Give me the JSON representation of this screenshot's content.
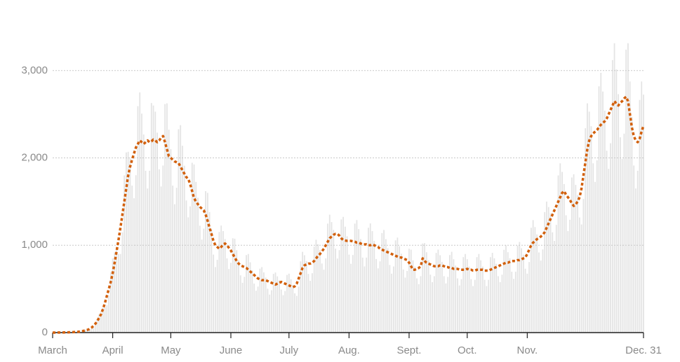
{
  "chart_data": {
    "type": "bar-line",
    "categories": [
      "March",
      null,
      null,
      null,
      null,
      null,
      null,
      null,
      null,
      null,
      null,
      null,
      null,
      null,
      null,
      null,
      null,
      null,
      null,
      null,
      null,
      null,
      null,
      null,
      null,
      null,
      null,
      null,
      null,
      null,
      null,
      "April",
      null,
      null,
      null,
      null,
      null,
      null,
      null,
      null,
      null,
      null,
      null,
      null,
      null,
      null,
      null,
      null,
      null,
      null,
      null,
      null,
      null,
      null,
      null,
      null,
      null,
      null,
      null,
      null,
      null,
      "May",
      null,
      null,
      null,
      null,
      null,
      null,
      null,
      null,
      null,
      null,
      null,
      null,
      null,
      null,
      null,
      null,
      null,
      null,
      null,
      null,
      null,
      null,
      null,
      null,
      null,
      null,
      null,
      null,
      null,
      null,
      "June",
      null,
      null,
      null,
      null,
      null,
      null,
      null,
      null,
      null,
      null,
      null,
      null,
      null,
      null,
      null,
      null,
      null,
      null,
      null,
      null,
      null,
      null,
      null,
      null,
      null,
      null,
      null,
      null,
      null,
      "July",
      null,
      null,
      null,
      null,
      null,
      null,
      null,
      null,
      null,
      null,
      null,
      null,
      null,
      null,
      null,
      null,
      null,
      null,
      null,
      null,
      null,
      null,
      null,
      null,
      null,
      null,
      null,
      null,
      null,
      null,
      "Aug.",
      null,
      null,
      null,
      null,
      null,
      null,
      null,
      null,
      null,
      null,
      null,
      null,
      null,
      null,
      null,
      null,
      null,
      null,
      null,
      null,
      null,
      null,
      null,
      null,
      null,
      null,
      null,
      null,
      null,
      null,
      "Sept.",
      null,
      null,
      null,
      null,
      null,
      null,
      null,
      null,
      null,
      null,
      null,
      null,
      null,
      null,
      null,
      null,
      null,
      null,
      null,
      null,
      null,
      null,
      null,
      null,
      null,
      null,
      null,
      null,
      null,
      "Oct.",
      null,
      null,
      null,
      null,
      null,
      null,
      null,
      null,
      null,
      null,
      null,
      null,
      null,
      null,
      null,
      null,
      null,
      null,
      null,
      null,
      null,
      null,
      null,
      null,
      null,
      null,
      null,
      null,
      null,
      null,
      "Nov.",
      null,
      null,
      null,
      null,
      null,
      null,
      null,
      null,
      null,
      null,
      null,
      null,
      null,
      null,
      null,
      null,
      null,
      null,
      null,
      null,
      null,
      null,
      null,
      null,
      null,
      null,
      null,
      null,
      null,
      null,
      null,
      null,
      null,
      null,
      null,
      null,
      null,
      null,
      null,
      null,
      null,
      null,
      null,
      null,
      null,
      null,
      null,
      null,
      null,
      null,
      null,
      null,
      null,
      null,
      null,
      null,
      null,
      null,
      null,
      "Dec. 31"
    ],
    "series": [
      {
        "type": "bar",
        "color": "#e4e4e4",
        "values": [
          0,
          0,
          0,
          1,
          1,
          1,
          2,
          2,
          3,
          5,
          6,
          7,
          7,
          8,
          9,
          14,
          24,
          33,
          37,
          42,
          47,
          56,
          85,
          156,
          212,
          242,
          284,
          289,
          315,
          425,
          696,
          850,
          920,
          977,
          901,
          900,
          1148,
          1800,
          2063,
          2070,
          1995,
          1683,
          1538,
          1802,
          2592,
          2750,
          2507,
          2268,
          1853,
          1650,
          1853,
          2628,
          2600,
          2530,
          2289,
          1870,
          1673,
          1913,
          2616,
          2625,
          2323,
          2100,
          1683,
          1470,
          1658,
          2328,
          2375,
          2139,
          1911,
          1513,
          1320,
          1445,
          1944,
          1925,
          1725,
          1544,
          1224,
          1065,
          1190,
          1620,
          1600,
          1380,
          1187,
          893,
          750,
          833,
          1152,
          1225,
          1162,
          1071,
          850,
          728,
          799,
          1080,
          1075,
          943,
          830,
          655,
          570,
          638,
          888,
          900,
          805,
          714,
          561,
          480,
          527,
          732,
          750,
          690,
          630,
          502,
          435,
          485,
          672,
          688,
          644,
          599,
          493,
          428,
          476,
          660,
          675,
          610,
          546,
          450,
          420,
          527,
          816,
          925,
          886,
          819,
          672,
          593,
          680,
          984,
          1063,
          1012,
          945,
          791,
          720,
          850,
          1248,
          1350,
          1265,
          1176,
          961,
          848,
          944,
          1296,
          1325,
          1213,
          1103,
          893,
          788,
          888,
          1248,
          1288,
          1185,
          1071,
          859,
          758,
          859,
          1200,
          1250,
          1162,
          1050,
          842,
          735,
          816,
          1140,
          1175,
          1070,
          966,
          774,
          675,
          757,
          1056,
          1088,
          989,
          903,
          723,
          630,
          706,
          960,
          950,
          828,
          756,
          621,
          555,
          646,
          1020,
          1025,
          920,
          830,
          663,
          578,
          646,
          912,
          950,
          886,
          809,
          646,
          563,
          638,
          888,
          925,
          840,
          767,
          621,
          540,
          612,
          864,
          900,
          840,
          756,
          612,
          533,
          604,
          864,
          900,
          828,
          756,
          604,
          533,
          604,
          864,
          913,
          851,
          788,
          646,
          578,
          663,
          948,
          1000,
          920,
          851,
          697,
          615,
          697,
          996,
          1038,
          966,
          893,
          731,
          675,
          808,
          1200,
          1288,
          1208,
          1124,
          918,
          825,
          952,
          1380,
          1500,
          1438,
          1365,
          1148,
          1050,
          1233,
          1800,
          1938,
          1840,
          1701,
          1343,
          1163,
          1292,
          1776,
          1813,
          1691,
          1575,
          1318,
          1238,
          1530,
          2340,
          2625,
          2530,
          2363,
          1938,
          1725,
          1972,
          2820,
          2975,
          2760,
          2541,
          2083,
          1875,
          2168,
          3120,
          3313,
          3013,
          2730,
          2236,
          1988,
          2278,
          3240,
          3313,
          2875,
          2468,
          1913,
          1650,
          1853,
          2664,
          2875,
          2725
        ]
      },
      {
        "type": "line",
        "color": "#d2600c",
        "values": [
          0,
          0,
          0,
          1,
          1,
          1,
          2,
          2,
          3,
          4,
          5,
          6,
          7,
          9,
          12,
          16,
          20,
          26,
          32,
          40,
          55,
          75,
          100,
          130,
          170,
          210,
          270,
          340,
          420,
          500,
          580,
          680,
          800,
          930,
          1060,
          1200,
          1350,
          1500,
          1650,
          1800,
          1900,
          1980,
          2050,
          2120,
          2160,
          2200,
          2180,
          2160,
          2180,
          2200,
          2180,
          2190,
          2210,
          2200,
          2180,
          2200,
          2230,
          2250,
          2180,
          2100,
          2020,
          2000,
          1980,
          1960,
          1950,
          1940,
          1900,
          1860,
          1820,
          1780,
          1760,
          1700,
          1620,
          1540,
          1500,
          1470,
          1440,
          1420,
          1400,
          1350,
          1280,
          1200,
          1130,
          1050,
          1000,
          980,
          960,
          980,
          1010,
          1020,
          1000,
          970,
          940,
          900,
          860,
          820,
          790,
          770,
          760,
          750,
          740,
          720,
          700,
          680,
          660,
          640,
          620,
          610,
          600,
          600,
          600,
          590,
          580,
          570,
          560,
          550,
          560,
          570,
          580,
          570,
          560,
          550,
          540,
          530,
          520,
          530,
          560,
          620,
          680,
          740,
          770,
          780,
          790,
          790,
          800,
          820,
          850,
          880,
          900,
          930,
          960,
          1000,
          1040,
          1080,
          1100,
          1120,
          1130,
          1130,
          1110,
          1080,
          1060,
          1055,
          1050,
          1050,
          1050,
          1045,
          1040,
          1030,
          1030,
          1020,
          1010,
          1010,
          1010,
          1000,
          1000,
          1010,
          1000,
          990,
          980,
          960,
          950,
          940,
          930,
          920,
          910,
          900,
          890,
          880,
          870,
          860,
          860,
          850,
          840,
          830,
          800,
          760,
          720,
          720,
          730,
          740,
          760,
          850,
          820,
          800,
          790,
          780,
          770,
          760,
          760,
          760,
          770,
          770,
          760,
          750,
          750,
          740,
          740,
          730,
          730,
          730,
          720,
          720,
          720,
          720,
          730,
          720,
          720,
          710,
          710,
          720,
          720,
          720,
          720,
          710,
          710,
          710,
          720,
          730,
          740,
          750,
          760,
          770,
          780,
          790,
          800,
          800,
          810,
          820,
          820,
          820,
          830,
          830,
          840,
          850,
          860,
          900,
          950,
          1000,
          1030,
          1050,
          1070,
          1080,
          1100,
          1120,
          1150,
          1200,
          1250,
          1300,
          1350,
          1400,
          1450,
          1500,
          1550,
          1600,
          1620,
          1580,
          1550,
          1520,
          1480,
          1450,
          1470,
          1500,
          1550,
          1650,
          1800,
          1950,
          2100,
          2200,
          2250,
          2280,
          2300,
          2320,
          2350,
          2380,
          2400,
          2420,
          2450,
          2500,
          2550,
          2600,
          2650,
          2620,
          2600,
          2630,
          2650,
          2680,
          2700,
          2650,
          2500,
          2350,
          2250,
          2200,
          2180,
          2220,
          2300,
          2370
        ]
      }
    ],
    "ylim": [
      0,
      3800
    ],
    "yticks": [
      0,
      {
        "value": 1000,
        "label": "1,000"
      },
      {
        "value": 2000,
        "label": "2,000"
      },
      {
        "value": 3000,
        "label": "3,000"
      }
    ],
    "grid": true
  }
}
